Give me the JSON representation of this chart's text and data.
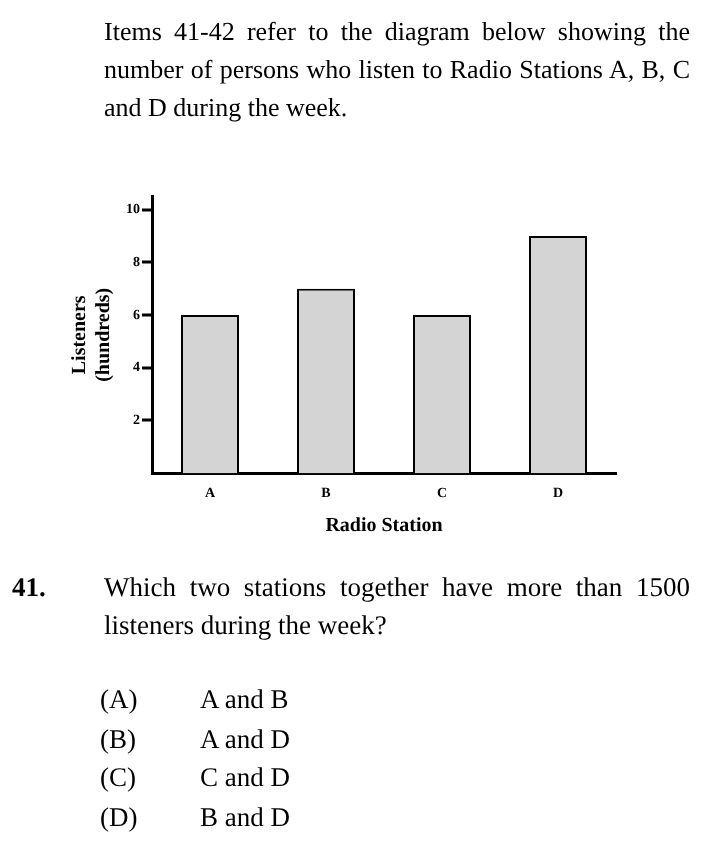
{
  "chart_data": {
    "type": "bar",
    "title": "Items 41-42 refer to the diagram below showing the number of persons who listen to Radio Stations A, B, C and D during the week.",
    "xlabel": "Radio Station",
    "ylabel": "Listeners\n(hundreds)",
    "categories": [
      "A",
      "B",
      "C",
      "D"
    ],
    "values": [
      6,
      7,
      6,
      9
    ],
    "color": "#d4d4d4",
    "ylim": [
      0,
      10.5
    ],
    "yticks": [
      2,
      4,
      6,
      8,
      10
    ],
    "grid": false,
    "legend": false,
    "annotations": [
      "41.",
      "Which two stations together have more than 1500 listeners during the week?",
      "(A)",
      "A and B",
      "(B)",
      "A and D",
      "(C)",
      "C and D",
      "(D)",
      "B and D"
    ]
  }
}
